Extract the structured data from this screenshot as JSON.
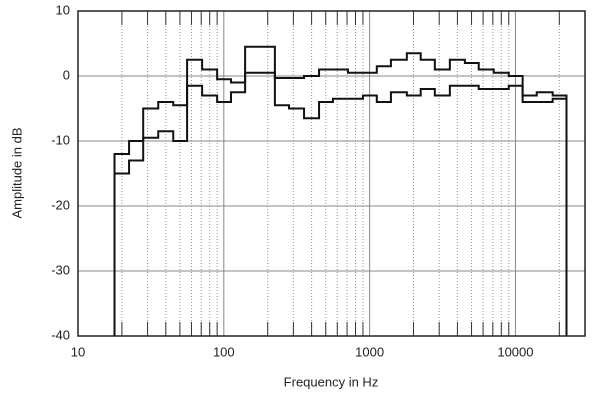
{
  "chart_data": {
    "type": "step",
    "xlabel": "Frequency in Hz",
    "ylabel": "Amplitude in dB",
    "xscale": "log",
    "xlim": [
      10,
      30000
    ],
    "ylim": [
      -40,
      10
    ],
    "xticks": [
      10,
      100,
      1000,
      10000
    ],
    "xminorticks": [
      20,
      30,
      40,
      50,
      60,
      70,
      80,
      90,
      200,
      300,
      400,
      500,
      600,
      700,
      800,
      900,
      2000,
      3000,
      4000,
      5000,
      6000,
      7000,
      8000,
      9000,
      20000
    ],
    "yticks": [
      10,
      0,
      -10,
      -20,
      -30,
      -40
    ],
    "grid": true,
    "x": [
      17.8,
      22.4,
      28,
      35.5,
      45,
      56,
      71,
      90,
      112,
      140,
      180,
      224,
      280,
      355,
      450,
      560,
      710,
      900,
      1120,
      1400,
      1800,
      2240,
      2800,
      3550,
      4500,
      5600,
      7100,
      9000,
      11200,
      14000,
      18000,
      22400
    ],
    "series": [
      {
        "color": "#111111",
        "values": [
          -12,
          -10,
          -5,
          -4,
          -4.5,
          2.5,
          1,
          -0.5,
          -1,
          4.5,
          4.5,
          -0.3,
          -0.3,
          0,
          1,
          1,
          0.5,
          0.5,
          1.5,
          2.5,
          3.5,
          2.5,
          1,
          2.5,
          2,
          1,
          0.5,
          0,
          -3,
          -2.5,
          -3,
          -3
        ]
      },
      {
        "color": "#111111",
        "values": [
          -15,
          -13,
          -9.5,
          -8.5,
          -10,
          -1.5,
          -3,
          -4,
          -2.5,
          0.5,
          0.5,
          -4.5,
          -5,
          -6.5,
          -4,
          -3.5,
          -3.5,
          -3,
          -4,
          -2.5,
          -3,
          -2,
          -3,
          -1.5,
          -1.5,
          -2,
          -2,
          -1.5,
          -4,
          -4,
          -3.5,
          -3.5
        ]
      }
    ]
  }
}
